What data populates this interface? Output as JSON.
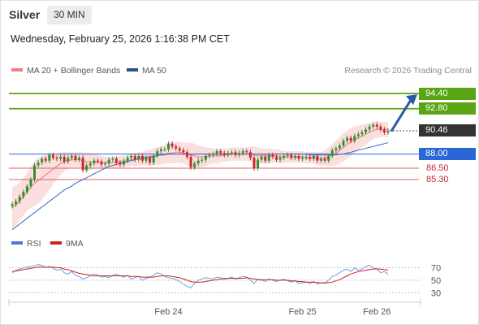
{
  "header": {
    "symbol": "Silver",
    "timeframe": "30 MIN",
    "datetime": "Wednesday, February 25, 2026 1:16:38 PM CET"
  },
  "legend": {
    "ma20": "MA 20 + Bollinger Bands",
    "ma50": "MA 50",
    "credit": "Research © 2026 Trading Central"
  },
  "rsi_legend": {
    "rsi": "RSI",
    "ma9": "9MA"
  },
  "colors": {
    "bull": "#3a8c2e",
    "bear": "#c8282f",
    "ma20": "#e87a7a",
    "ma50": "#3a6bc8",
    "band": "#f8d4d4",
    "resistance": "#5aa514",
    "support": "#e06060",
    "pivot": "#2a67d6",
    "last": "#333333",
    "arrow": "#2a5aa6",
    "rsi": "#6fa0e4",
    "rsi_ma": "#d02020"
  },
  "levels": [
    {
      "label": "94.40",
      "value": 94.4,
      "kind": "resistance"
    },
    {
      "label": "92.80",
      "value": 92.8,
      "kind": "resistance"
    },
    {
      "label": "90.46",
      "value": 90.46,
      "kind": "last"
    },
    {
      "label": "88.00",
      "value": 88.0,
      "kind": "pivot"
    },
    {
      "label": "86.50",
      "value": 86.5,
      "kind": "support"
    },
    {
      "label": "85.30",
      "value": 85.3,
      "kind": "support"
    }
  ],
  "chart_data": {
    "type": "candlestick",
    "ylim": [
      79.8,
      95.7
    ],
    "x_ticks": [
      "Feb 24",
      "Feb 25",
      "Feb 26"
    ],
    "x_tick_index": [
      42,
      78,
      98
    ],
    "candle_count": 102,
    "closes": [
      82.7,
      83.0,
      83.5,
      84.0,
      84.6,
      85.3,
      86.8,
      87.1,
      87.5,
      87.3,
      87.9,
      87.6,
      87.5,
      87.7,
      87.2,
      87.6,
      87.8,
      87.4,
      87.6,
      86.3,
      86.8,
      87.0,
      87.3,
      87.2,
      86.9,
      87.0,
      87.4,
      87.5,
      87.1,
      86.9,
      87.3,
      87.6,
      87.8,
      87.4,
      87.8,
      87.3,
      87.6,
      87.1,
      87.8,
      88.3,
      88.5,
      88.5,
      89.1,
      88.8,
      88.6,
      88.4,
      88.2,
      87.7,
      86.6,
      87.0,
      87.3,
      87.4,
      87.8,
      87.9,
      88.0,
      88.3,
      88.1,
      87.9,
      88.1,
      88.2,
      87.9,
      88.1,
      88.3,
      88.2,
      87.6,
      86.5,
      87.4,
      87.7,
      87.3,
      87.9,
      87.7,
      87.4,
      87.6,
      87.8,
      87.9,
      87.6,
      87.8,
      87.5,
      87.6,
      87.7,
      87.5,
      87.8,
      87.3,
      87.5,
      87.3,
      87.8,
      88.4,
      88.6,
      88.9,
      89.4,
      89.7,
      89.4,
      89.9,
      90.1,
      90.3,
      90.6,
      90.9,
      91.1,
      90.9,
      90.6,
      90.3,
      90.46
    ],
    "ma20": [
      82.3,
      82.6,
      83.0,
      83.5,
      84.0,
      84.5,
      84.9,
      85.2,
      85.5,
      85.8,
      86.1,
      86.4,
      86.7,
      87.0,
      87.2,
      87.3,
      87.4,
      87.4,
      87.4,
      87.3,
      87.2,
      87.2,
      87.2,
      87.2,
      87.1,
      87.1,
      87.1,
      87.1,
      87.1,
      87.2,
      87.2,
      87.3,
      87.4,
      87.4,
      87.5,
      87.5,
      87.6,
      87.6,
      87.7,
      87.8,
      87.9,
      88.0,
      88.1,
      88.1,
      88.2,
      88.2,
      88.1,
      88.0,
      87.9,
      87.8,
      87.7,
      87.7,
      87.7,
      87.8,
      87.8,
      87.8,
      87.8,
      87.9,
      87.9,
      88.0,
      88.0,
      88.0,
      88.0,
      88.0,
      88.0,
      87.9,
      87.8,
      87.8,
      87.8,
      87.8,
      87.8,
      87.8,
      87.7,
      87.7,
      87.7,
      87.7,
      87.7,
      87.7,
      87.7,
      87.6,
      87.6,
      87.6,
      87.5,
      87.5,
      87.6,
      87.7,
      87.9,
      88.1,
      88.4,
      88.7,
      89.0,
      89.3,
      89.5,
      89.7,
      89.9,
      90.1,
      90.3,
      90.5,
      90.6,
      90.6,
      90.6,
      90.6
    ],
    "ma50": [
      80.0,
      80.3,
      80.6,
      80.9,
      81.2,
      81.5,
      81.8,
      82.1,
      82.4,
      82.7,
      83.0,
      83.3,
      83.6,
      83.9,
      84.2,
      84.4,
      84.6,
      84.9,
      85.1,
      85.3,
      85.5,
      85.7,
      85.9,
      86.1,
      86.3,
      86.5,
      86.7,
      86.8,
      86.9,
      87.0,
      87.1,
      87.2,
      87.3,
      87.4,
      87.5,
      87.6,
      87.7,
      87.7,
      87.8,
      87.8,
      87.9,
      87.9,
      88.0,
      88.0,
      88.0,
      88.0,
      88.0,
      88.0,
      88.0,
      88.0,
      88.0,
      88.0,
      88.0,
      88.0,
      88.0,
      88.0,
      88.0,
      88.0,
      88.0,
      88.0,
      88.0,
      88.0,
      88.0,
      88.0,
      88.0,
      88.0,
      88.0,
      88.0,
      88.0,
      88.0,
      88.0,
      88.0,
      88.0,
      88.0,
      88.0,
      88.0,
      88.0,
      88.0,
      88.0,
      88.0,
      87.9,
      87.9,
      87.9,
      87.9,
      87.9,
      87.9,
      87.9,
      87.9,
      88.0,
      88.0,
      88.1,
      88.2,
      88.3,
      88.4,
      88.5,
      88.6,
      88.7,
      88.8,
      88.9,
      89.0,
      89.1,
      89.2
    ],
    "band_width": [
      2.2,
      2.1,
      2.0,
      2.0,
      2.0,
      2.2,
      2.4,
      2.4,
      2.3,
      2.1,
      1.9,
      1.6,
      1.4,
      1.2,
      1.0,
      0.9,
      0.8,
      0.8,
      0.8,
      0.9,
      0.9,
      0.9,
      0.8,
      0.7,
      0.7,
      0.6,
      0.6,
      0.6,
      0.6,
      0.6,
      0.6,
      0.6,
      0.6,
      0.7,
      0.7,
      0.7,
      0.8,
      0.8,
      0.9,
      0.9,
      1.0,
      1.0,
      1.1,
      1.1,
      1.1,
      1.1,
      1.1,
      1.2,
      1.3,
      1.3,
      1.2,
      1.1,
      1.0,
      0.9,
      0.8,
      0.8,
      0.7,
      0.7,
      0.7,
      0.7,
      0.7,
      0.7,
      0.7,
      0.7,
      0.8,
      0.9,
      0.9,
      0.8,
      0.8,
      0.8,
      0.7,
      0.7,
      0.7,
      0.6,
      0.6,
      0.6,
      0.6,
      0.6,
      0.6,
      0.6,
      0.6,
      0.6,
      0.7,
      0.7,
      0.8,
      1.0,
      1.2,
      1.3,
      1.4,
      1.5,
      1.5,
      1.5,
      1.4,
      1.3,
      1.2,
      1.1,
      1.0,
      0.9,
      0.9,
      0.8,
      0.8,
      0.8
    ],
    "rsi": {
      "ticks": [
        70,
        50,
        30
      ],
      "ylim": [
        20,
        85
      ],
      "values": [
        62,
        66,
        68,
        70,
        71,
        72,
        73,
        75,
        74,
        70,
        72,
        69,
        66,
        68,
        62,
        60,
        64,
        58,
        56,
        52,
        54,
        57,
        60,
        58,
        55,
        56,
        54,
        58,
        60,
        57,
        55,
        58,
        52,
        54,
        56,
        50,
        53,
        55,
        58,
        62,
        60,
        56,
        54,
        53,
        51,
        48,
        44,
        40,
        38,
        45,
        50,
        52,
        54,
        53,
        52,
        55,
        54,
        51,
        53,
        55,
        52,
        54,
        56,
        55,
        50,
        45,
        52,
        50,
        48,
        52,
        50,
        48,
        50,
        52,
        49,
        47,
        49,
        45,
        46,
        47,
        45,
        48,
        44,
        46,
        45,
        50,
        56,
        58,
        62,
        66,
        68,
        64,
        70,
        66,
        68,
        72,
        74,
        70,
        68,
        62,
        64,
        60
      ],
      "ma9": [
        64,
        65,
        66,
        67,
        68,
        69,
        70,
        71,
        71,
        71,
        71,
        71,
        70,
        70,
        68,
        67,
        65,
        63,
        61,
        60,
        59,
        58,
        57,
        57,
        57,
        57,
        57,
        57,
        57,
        57,
        57,
        57,
        56,
        56,
        56,
        55,
        55,
        55,
        55,
        56,
        57,
        57,
        57,
        56,
        55,
        54,
        52,
        50,
        48,
        47,
        47,
        47,
        48,
        49,
        50,
        51,
        52,
        53,
        53,
        53,
        53,
        53,
        53,
        54,
        53,
        52,
        51,
        51,
        51,
        51,
        51,
        50,
        50,
        50,
        50,
        49,
        49,
        48,
        48,
        47,
        47,
        47,
        46,
        46,
        46,
        46,
        47,
        49,
        51,
        54,
        57,
        60,
        62,
        64,
        65,
        66,
        67,
        68,
        68,
        68,
        67,
        66
      ]
    }
  }
}
